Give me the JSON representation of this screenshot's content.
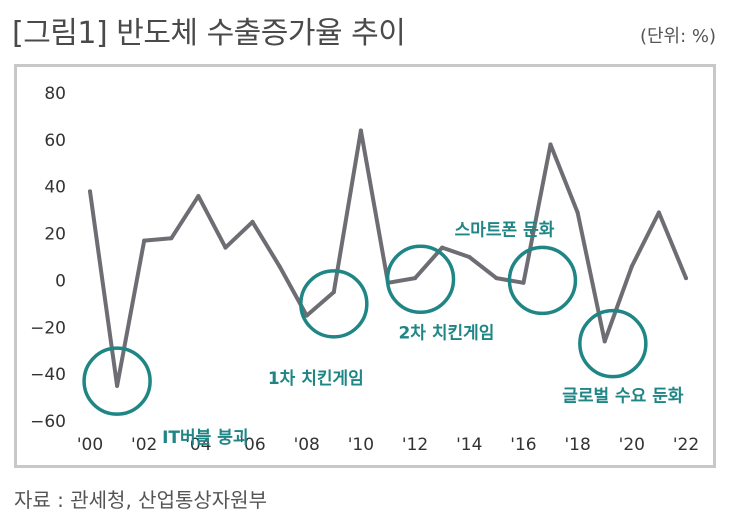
{
  "title": "[그림1] 반도체 수출증가율 추이",
  "unit": "(단위: %)",
  "source": "자료 : 관세청, 산업통상자원부",
  "colors": {
    "line": "#6d6d73",
    "accent": "#1f8585",
    "frame": "#c8c8c8"
  },
  "chart_data": {
    "type": "line",
    "title": "[그림1] 반도체 수출증가율 추이",
    "xlabel": "",
    "ylabel": "",
    "ylim": [
      -60,
      80
    ],
    "yticks": [
      80,
      60,
      40,
      20,
      0,
      -20,
      -40,
      -60
    ],
    "ytick_labels": [
      "80",
      "60",
      "40",
      "20",
      "0",
      "-20",
      "-40",
      "-60"
    ],
    "xticks": [
      2000,
      2002,
      2004,
      2006,
      2008,
      2010,
      2012,
      2014,
      2016,
      2018,
      2020,
      2022
    ],
    "xtick_labels": [
      "'00",
      "'02",
      "'04",
      "'06",
      "'08",
      "'10",
      "'12",
      "'14",
      "'16",
      "'18",
      "'20",
      "'22"
    ],
    "grid": false,
    "x": [
      2000,
      2001,
      2002,
      2003,
      2004,
      2005,
      2006,
      2007,
      2008,
      2009,
      2010,
      2011,
      2012,
      2013,
      2014,
      2015,
      2016,
      2017,
      2018,
      2019,
      2020,
      2021,
      2022
    ],
    "values": [
      38,
      -45,
      17,
      18,
      36,
      14,
      25,
      6,
      -15,
      -5,
      64,
      -1,
      1,
      14,
      10,
      1,
      -1,
      58,
      29,
      -26,
      6,
      29,
      1
    ],
    "annotations": [
      {
        "label": "IT버블 붕괴",
        "x": 2001,
        "y": -43
      },
      {
        "label": "1차 치킨게임",
        "x": 2009,
        "y": -10
      },
      {
        "label": "스마트폰 둔화",
        "x": 2012.2,
        "y": 0.5
      },
      {
        "label": "2차 치킨게임",
        "x": 2016.7,
        "y": 0
      },
      {
        "label": "글로벌 수요 둔화",
        "x": 2019.3,
        "y": -27
      }
    ]
  }
}
